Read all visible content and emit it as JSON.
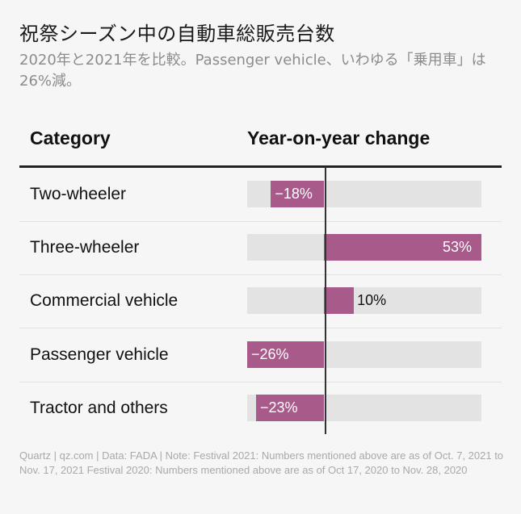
{
  "title": "祝祭シーズン中の自動車総販売台数",
  "subtitle": "2020年と2021年を比較。Passenger vehicle、いわゆる「乗用車」は26%減。",
  "table": {
    "col_category": "Category",
    "col_change": "Year-on-year change"
  },
  "chart_data": {
    "type": "bar",
    "orientation": "horizontal",
    "categories": [
      "Two-wheeler",
      "Three-wheeler",
      "Commercial vehicle",
      "Passenger vehicle",
      "Tractor and others"
    ],
    "values": [
      -18,
      53,
      10,
      -26,
      -23
    ],
    "value_labels": [
      "−18%",
      "53%",
      "10%",
      "−26%",
      "−23%"
    ],
    "unit": "%",
    "xlim": [
      -26,
      53
    ],
    "bar_color": "#a85a8a",
    "track_color": "#e3e3e3"
  },
  "source": "Quartz | qz.com | Data: FADA | Note: Festival 2021: Numbers mentioned above are as of Oct. 7, 2021 to Nov. 17, 2021 Festival 2020: Numbers mentioned above are as of Oct 17, 2020 to Nov. 28, 2020"
}
